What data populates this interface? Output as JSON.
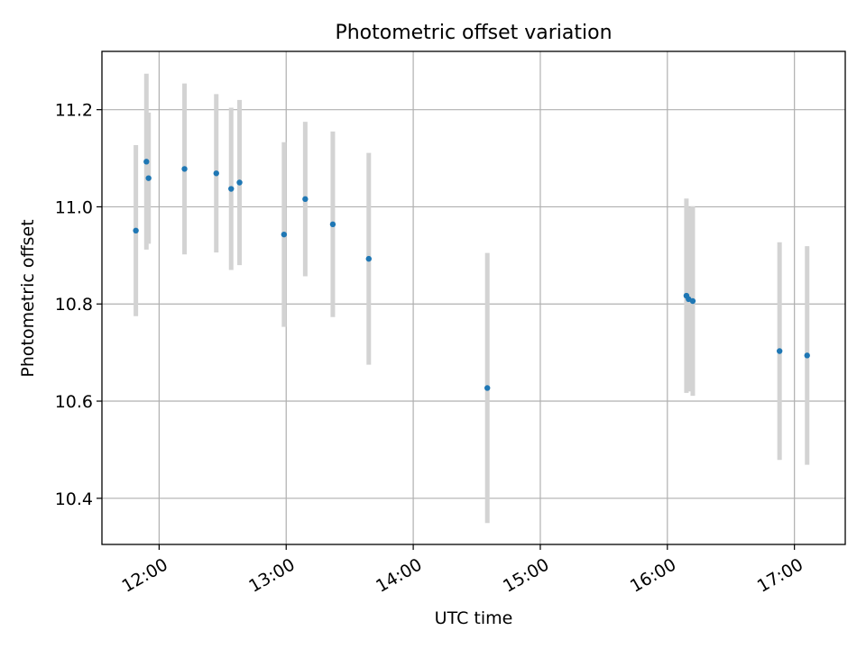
{
  "chart_data": {
    "type": "scatter",
    "title": "Photometric offset variation",
    "xlabel": "UTC time",
    "ylabel": "Photometric offset",
    "x_unit": "hours",
    "xlim": [
      11.55,
      17.4
    ],
    "ylim": [
      10.305,
      11.32
    ],
    "grid": true,
    "x_ticks": [
      {
        "value": 12,
        "label": "12:00"
      },
      {
        "value": 13,
        "label": "13:00"
      },
      {
        "value": 14,
        "label": "14:00"
      },
      {
        "value": 15,
        "label": "15:00"
      },
      {
        "value": 16,
        "label": "16:00"
      },
      {
        "value": 17,
        "label": "17:00"
      }
    ],
    "y_ticks": [
      {
        "value": 10.4,
        "label": "10.4"
      },
      {
        "value": 10.6,
        "label": "10.6"
      },
      {
        "value": 10.8,
        "label": "10.8"
      },
      {
        "value": 11.0,
        "label": "11.0"
      },
      {
        "value": 11.2,
        "label": "11.2"
      }
    ],
    "colors": {
      "marker": "#1f77b4",
      "errorbar": "#d3d3d3",
      "grid": "#b0b0b0",
      "axis": "#000000"
    },
    "points": [
      {
        "x": 11.817,
        "y": 10.951,
        "err": 0.176
      },
      {
        "x": 11.9,
        "y": 11.093,
        "err": 0.181
      },
      {
        "x": 11.917,
        "y": 11.059,
        "err": 0.135
      },
      {
        "x": 12.2,
        "y": 11.078,
        "err": 0.176
      },
      {
        "x": 12.45,
        "y": 11.069,
        "err": 0.163
      },
      {
        "x": 12.567,
        "y": 11.037,
        "err": 0.167
      },
      {
        "x": 12.633,
        "y": 11.05,
        "err": 0.17
      },
      {
        "x": 12.983,
        "y": 10.943,
        "err": 0.19
      },
      {
        "x": 13.15,
        "y": 11.016,
        "err": 0.159
      },
      {
        "x": 13.367,
        "y": 10.964,
        "err": 0.191
      },
      {
        "x": 13.65,
        "y": 10.893,
        "err": 0.218
      },
      {
        "x": 14.583,
        "y": 10.627,
        "err": 0.278
      },
      {
        "x": 16.15,
        "y": 10.817,
        "err": 0.2
      },
      {
        "x": 16.167,
        "y": 10.81,
        "err": 0.19
      },
      {
        "x": 16.2,
        "y": 10.806,
        "err": 0.195
      },
      {
        "x": 16.883,
        "y": 10.703,
        "err": 0.224
      },
      {
        "x": 17.1,
        "y": 10.694,
        "err": 0.225
      }
    ]
  }
}
